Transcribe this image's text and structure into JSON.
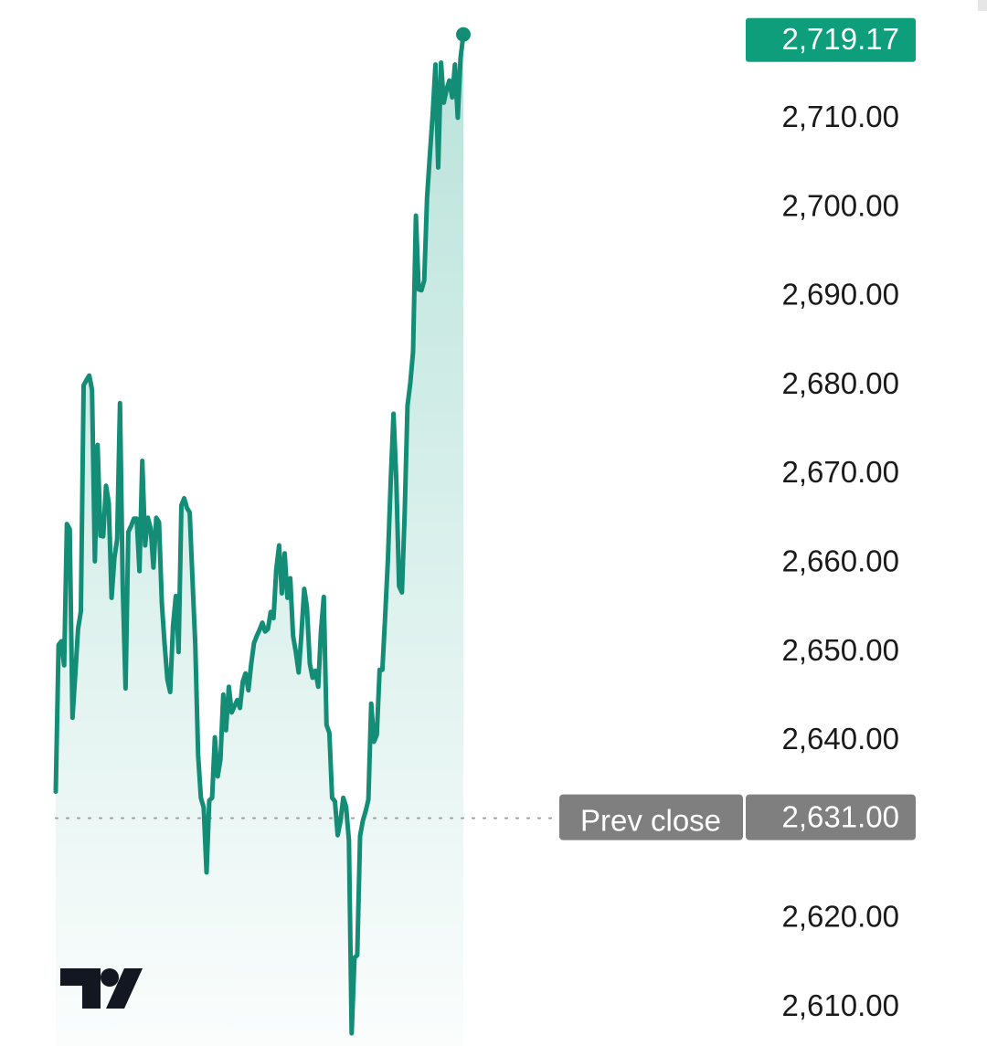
{
  "chart_data": {
    "type": "area",
    "title": "",
    "xlabel": "",
    "ylabel": "",
    "y_ticks": [
      2710,
      2700,
      2690,
      2680,
      2670,
      2660,
      2650,
      2640,
      2620,
      2610
    ],
    "y_tick_labels": [
      "2,710.00",
      "2,700.00",
      "2,690.00",
      "2,680.00",
      "2,670.00",
      "2,660.00",
      "2,650.00",
      "2,640.00",
      "2,620.00",
      "2,610.00"
    ],
    "ylim": [
      2606.8,
      2721.2
    ],
    "last_price": 2719.17,
    "last_price_label": "2,719.17",
    "prev_close": 2631.0,
    "prev_close_label": "2,631.00",
    "prev_close_caption": "Prev close",
    "series": [
      {
        "values": [
          2634.0,
          2650.5,
          2650.9,
          2648.2,
          2664.1,
          2663.5,
          2642.3,
          2647.2,
          2652.3,
          2654.3,
          2679.7,
          2680.3,
          2680.8,
          2679.2,
          2659.9,
          2673.0,
          2662.8,
          2662.7,
          2668.4,
          2666.5,
          2655.8,
          2660.3,
          2662.4,
          2677.7,
          2657.1,
          2645.6,
          2663.2,
          2663.9,
          2664.7,
          2664.7,
          2658.8,
          2671.2,
          2661.7,
          2664.8,
          2663.6,
          2659.2,
          2664.8,
          2664.3,
          2655.2,
          2650.6,
          2646.6,
          2645.2,
          2652.6,
          2656.0,
          2649.7,
          2666.2,
          2667.0,
          2665.9,
          2665.4,
          2657.7,
          2650.5,
          2638.1,
          2633.3,
          2632.2,
          2624.9,
          2633.0,
          2633.3,
          2640.1,
          2635.7,
          2637.6,
          2644.9,
          2640.9,
          2645.8,
          2642.9,
          2643.6,
          2644.3,
          2643.4,
          2646.4,
          2647.3,
          2645.4,
          2648.3,
          2650.7,
          2651.5,
          2652.2,
          2653.0,
          2652.0,
          2652.3,
          2654.2,
          2653.5,
          2659.0,
          2661.7,
          2656.3,
          2660.8,
          2655.8,
          2658.0,
          2651.5,
          2649.7,
          2647.4,
          2651.7,
          2656.8,
          2654.7,
          2648.4,
          2646.8,
          2647.6,
          2645.8,
          2652.0,
          2655.9,
          2641.5,
          2640.6,
          2633.3,
          2632.9,
          2629.1,
          2630.7,
          2633.3,
          2632.3,
          2628.5,
          2606.8,
          2615.3,
          2615.6,
          2629.0,
          2630.7,
          2631.8,
          2633.1,
          2643.9,
          2639.6,
          2640.4,
          2647.7,
          2647.7,
          2653.8,
          2660.2,
          2669.1,
          2676.5,
          2668.9,
          2657.1,
          2656.4,
          2665.3,
          2677.4,
          2680.0,
          2683.5,
          2698.8,
          2690.5,
          2690.4,
          2691.5,
          2700.8,
          2705.5,
          2710.1,
          2715.8,
          2704.2,
          2716.0,
          2711.5,
          2713.0,
          2714.0,
          2712.1,
          2715.8,
          2709.8,
          2716.5,
          2719.17
        ]
      }
    ],
    "colors": {
      "line": "#138d75",
      "last_price_tag": "#0e9e7c",
      "prev_close_tag": "#7f7f7f",
      "gridline_dots": "#9e9e9e",
      "axis_text": "#1a1a1a"
    },
    "watermark": "TradingView logo"
  }
}
